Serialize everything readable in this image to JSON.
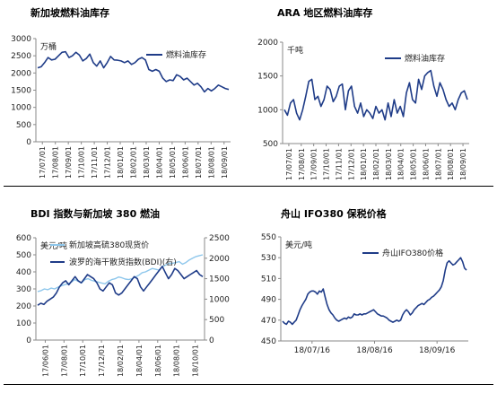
{
  "colors": {
    "navy": "#1f3c88",
    "light_blue": "#8ec7ec",
    "axis": "#8a8a8a",
    "rule": "#000000"
  },
  "chart_data": [
    {
      "id": "sg_fuel_stock",
      "type": "line",
      "title": "新加坡燃料油库存",
      "unit_label": "万桶",
      "ylim": [
        0,
        3000
      ],
      "yticks": [
        0,
        500,
        1000,
        1500,
        2000,
        2500,
        3000
      ],
      "x_tick_labels": [
        "17/07/01",
        "17/08/01",
        "17/09/01",
        "17/10/01",
        "17/11/01",
        "17/12/01",
        "18/01/01",
        "18/02/01",
        "18/03/01",
        "18/04/01",
        "18/05/01",
        "18/06/01",
        "18/07/01",
        "18/08/01",
        "18/09/01"
      ],
      "legend": {
        "position": "top-right"
      },
      "series": [
        {
          "name": "燃料油库存",
          "color": "#1f3c88",
          "values": [
            2150,
            2180,
            2300,
            2450,
            2380,
            2400,
            2500,
            2600,
            2620,
            2450,
            2500,
            2600,
            2520,
            2350,
            2420,
            2550,
            2300,
            2200,
            2350,
            2150,
            2300,
            2480,
            2380,
            2370,
            2350,
            2300,
            2350,
            2250,
            2300,
            2400,
            2450,
            2380,
            2100,
            2050,
            2100,
            2050,
            1850,
            1750,
            1800,
            1780,
            1950,
            1900,
            1800,
            1850,
            1750,
            1650,
            1700,
            1600,
            1450,
            1550,
            1480,
            1550,
            1650,
            1600,
            1550,
            1520
          ]
        }
      ]
    },
    {
      "id": "ara_fuel_stock",
      "type": "line",
      "title": "ARA 地区燃料油库存",
      "unit_label": "千吨",
      "ylim": [
        500,
        2000
      ],
      "yticks": [
        500,
        1000,
        1500,
        2000
      ],
      "x_tick_labels": [
        "17/07/01",
        "17/08/01",
        "17/09/01",
        "17/10/01",
        "17/11/01",
        "17/12/01",
        "18/01/01",
        "18/02/01",
        "18/03/01",
        "18/04/01",
        "18/05/01",
        "18/06/01",
        "18/07/01",
        "18/08/01",
        "18/09/01"
      ],
      "legend": {
        "position": "top-right"
      },
      "series": [
        {
          "name": "燃料油库存",
          "color": "#1f3c88",
          "values": [
            1000,
            920,
            1100,
            1150,
            950,
            850,
            1000,
            1200,
            1420,
            1450,
            1150,
            1200,
            1050,
            1150,
            1350,
            1300,
            1120,
            1200,
            1350,
            1380,
            1000,
            1280,
            1350,
            1050,
            950,
            1100,
            900,
            1000,
            950,
            870,
            1050,
            950,
            1000,
            850,
            1100,
            900,
            1150,
            950,
            1050,
            900,
            1250,
            1400,
            1150,
            1100,
            1450,
            1300,
            1500,
            1550,
            1580,
            1350,
            1200,
            1400,
            1300,
            1150,
            1050,
            1100,
            1000,
            1150,
            1250,
            1280,
            1150
          ]
        }
      ]
    },
    {
      "id": "bdi_vs_sg380",
      "type": "line",
      "title": "BDI 指数与新加坡 380 燃油",
      "left_unit_label": "美元/吨",
      "ylim_left": [
        0,
        600
      ],
      "yticks_left": [
        0,
        100,
        200,
        300,
        400,
        500,
        600
      ],
      "ylim_right": [
        0,
        2500
      ],
      "yticks_right": [
        0,
        500,
        1000,
        1500,
        2000,
        2500
      ],
      "x_tick_labels": [
        "17/06/01",
        "17/08/01",
        "17/10/01",
        "17/12/01",
        "18/02/01",
        "18/04/01",
        "18/06/01",
        "18/08/01",
        "18/10/01"
      ],
      "legend": {
        "position": "top-left"
      },
      "series": [
        {
          "name": "新加坡高硫380现货价",
          "axis": "left",
          "color": "#8ec7ec",
          "values": [
            285,
            290,
            300,
            295,
            305,
            300,
            310,
            318,
            325,
            330,
            340,
            355,
            345,
            335,
            355,
            360,
            350,
            345,
            340,
            335,
            330,
            345,
            355,
            360,
            370,
            365,
            358,
            355,
            360,
            370,
            380,
            395,
            400,
            410,
            420,
            415,
            410,
            430,
            440,
            450,
            450,
            455,
            460,
            445,
            455,
            470,
            480,
            490,
            495,
            500
          ]
        },
        {
          "name": "波罗的海干散货指数(BDI)(右)",
          "axis": "right",
          "color": "#1f3c88",
          "values": [
            850,
            900,
            870,
            950,
            1000,
            1050,
            1150,
            1300,
            1400,
            1450,
            1350,
            1450,
            1550,
            1450,
            1400,
            1500,
            1600,
            1550,
            1500,
            1400,
            1250,
            1200,
            1300,
            1400,
            1350,
            1150,
            1100,
            1150,
            1250,
            1350,
            1450,
            1550,
            1500,
            1300,
            1200,
            1300,
            1400,
            1500,
            1600,
            1700,
            1800,
            1650,
            1500,
            1600,
            1750,
            1700,
            1600,
            1500,
            1550,
            1600,
            1650,
            1700,
            1600,
            1550
          ]
        }
      ]
    },
    {
      "id": "zhoushan_ifo380",
      "type": "line",
      "title": "舟山 IFO380 保税价格",
      "unit_label": "美元/吨",
      "ylim": [
        450,
        550
      ],
      "yticks": [
        450,
        470,
        490,
        510,
        530,
        550
      ],
      "x_tick_labels": [
        "18/07/16",
        "18/08/16",
        "18/09/16"
      ],
      "legend": {
        "position": "top-right"
      },
      "series": [
        {
          "name": "舟山IFO380价格",
          "color": "#1f3c88",
          "values": [
            469,
            467,
            466,
            469,
            468,
            466,
            468,
            470,
            475,
            480,
            484,
            487,
            490,
            495,
            497,
            498,
            498,
            497,
            495,
            498,
            497,
            500,
            492,
            485,
            480,
            477,
            475,
            472,
            470,
            469,
            470,
            471,
            472,
            471,
            473,
            472,
            473,
            476,
            475,
            475,
            476,
            475,
            476,
            476,
            477,
            478,
            479,
            480,
            478,
            476,
            475,
            474,
            474,
            473,
            472,
            470,
            469,
            468,
            469,
            470,
            469,
            470,
            475,
            478,
            480,
            478,
            475,
            477,
            480,
            482,
            484,
            485,
            486,
            485,
            487,
            489,
            490,
            492,
            493,
            495,
            497,
            499,
            502,
            508,
            518,
            525,
            527,
            525,
            523,
            524,
            526,
            528,
            530,
            526,
            520,
            518
          ]
        }
      ]
    }
  ]
}
